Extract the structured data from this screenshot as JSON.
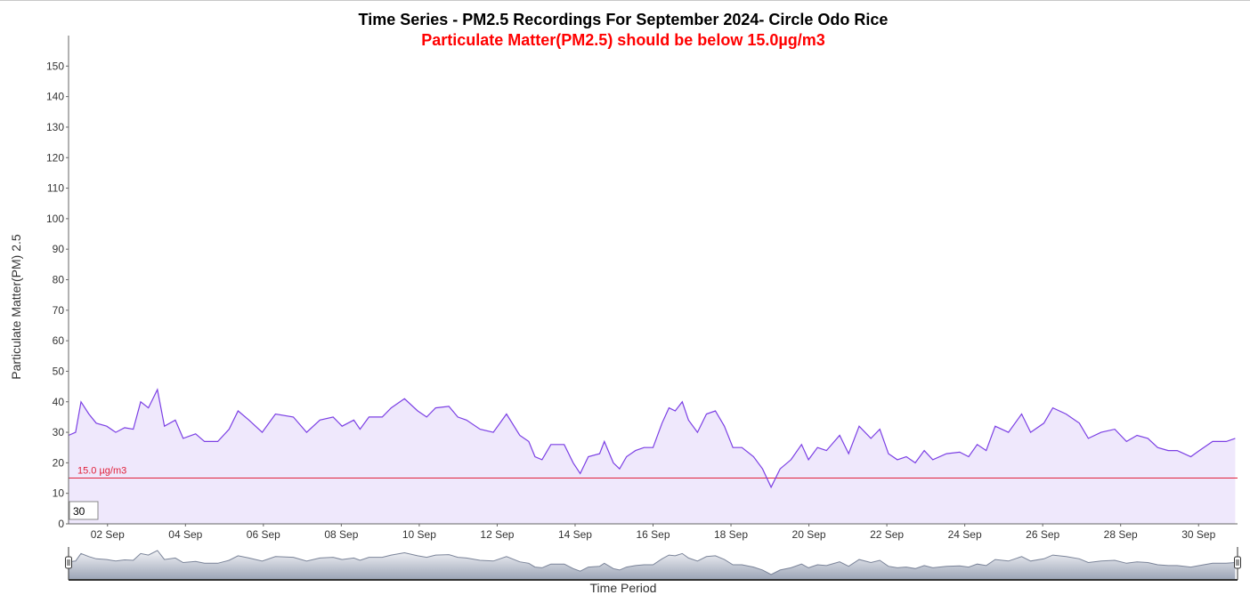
{
  "chart_data": {
    "type": "line",
    "title": "Time Series - PM2.5 Recordings For September 2024- Circle Odo Rice",
    "subtitle": "Particulate Matter(PM2.5) should be below 15.0µg/m3",
    "y_label": "Particulate Matter(PM) 2.5",
    "x_label": "Time Period",
    "roll_period": 30,
    "threshold": {
      "value": 15,
      "label": "15.0 µg/m3",
      "color": "#e0203a"
    },
    "xlim": [
      1,
      31
    ],
    "xticks": [
      {
        "value": 2,
        "label": "02 Sep"
      },
      {
        "value": 4,
        "label": "04 Sep"
      },
      {
        "value": 6,
        "label": "06 Sep"
      },
      {
        "value": 8,
        "label": "08 Sep"
      },
      {
        "value": 10,
        "label": "10 Sep"
      },
      {
        "value": 12,
        "label": "12 Sep"
      },
      {
        "value": 14,
        "label": "14 Sep"
      },
      {
        "value": 16,
        "label": "16 Sep"
      },
      {
        "value": 18,
        "label": "18 Sep"
      },
      {
        "value": 20,
        "label": "20 Sep"
      },
      {
        "value": 22,
        "label": "22 Sep"
      },
      {
        "value": 24,
        "label": "24 Sep"
      },
      {
        "value": 26,
        "label": "26 Sep"
      },
      {
        "value": 28,
        "label": "28 Sep"
      },
      {
        "value": 30,
        "label": "30 Sep"
      }
    ],
    "ylim": [
      0,
      160
    ],
    "yticks": [
      0,
      10,
      20,
      30,
      40,
      50,
      60,
      70,
      80,
      90,
      100,
      110,
      120,
      130,
      140,
      150
    ],
    "series": [
      {
        "name": "PM2.5",
        "color": "#7b3fe4",
        "fill": "#efe8fc",
        "x": [
          1.0,
          1.18,
          1.32,
          1.52,
          1.71,
          1.98,
          2.21,
          2.44,
          2.66,
          2.85,
          3.05,
          3.28,
          3.46,
          3.74,
          3.94,
          4.26,
          4.49,
          4.83,
          5.12,
          5.35,
          5.63,
          5.97,
          6.31,
          6.77,
          7.11,
          7.45,
          7.79,
          8.02,
          8.32,
          8.48,
          8.71,
          9.05,
          9.28,
          9.62,
          9.96,
          10.19,
          10.42,
          10.76,
          10.99,
          11.21,
          11.56,
          11.9,
          12.24,
          12.58,
          12.81,
          12.97,
          13.15,
          13.38,
          13.72,
          13.95,
          14.13,
          14.34,
          14.63,
          14.75,
          14.98,
          15.14,
          15.32,
          15.55,
          15.77,
          16.0,
          16.23,
          16.41,
          16.57,
          16.75,
          16.91,
          17.14,
          17.37,
          17.6,
          17.83,
          18.05,
          18.28,
          18.58,
          18.81,
          19.03,
          19.26,
          19.54,
          19.81,
          19.99,
          20.22,
          20.45,
          20.79,
          21.02,
          21.29,
          21.59,
          21.82,
          22.04,
          22.27,
          22.5,
          22.73,
          22.96,
          23.18,
          23.53,
          23.87,
          24.1,
          24.32,
          24.55,
          24.78,
          25.12,
          25.46,
          25.69,
          26.03,
          26.26,
          26.6,
          26.94,
          27.17,
          27.5,
          27.85,
          28.15,
          28.42,
          28.7,
          28.95,
          29.22,
          29.45,
          29.8,
          30.02,
          30.36,
          30.71,
          30.94
        ],
        "values": [
          29,
          30,
          40,
          36,
          33,
          32,
          30,
          31.5,
          31,
          40,
          38,
          44,
          32,
          34,
          28,
          29.5,
          27,
          27,
          31,
          37,
          34,
          30,
          36,
          35,
          30,
          34,
          35,
          32,
          34,
          31,
          35,
          35,
          38,
          41,
          37,
          35,
          38,
          38.5,
          35,
          34,
          31,
          30,
          36,
          29,
          27,
          22,
          21,
          26,
          26,
          20,
          16.5,
          22,
          23,
          27,
          20,
          18,
          22,
          24,
          25,
          25,
          33,
          38,
          37,
          40,
          34,
          30,
          36,
          37,
          32,
          25,
          25,
          22,
          18,
          12,
          18,
          21,
          26,
          21,
          25,
          24,
          29,
          23,
          32,
          28,
          31,
          23,
          21,
          22,
          20,
          24,
          21,
          23,
          23.5,
          22,
          26,
          24,
          32,
          30,
          36,
          30,
          33,
          38,
          36,
          33,
          28,
          30,
          31,
          27,
          29,
          28,
          25,
          24,
          24,
          22,
          24,
          27,
          27,
          28
        ]
      }
    ]
  }
}
